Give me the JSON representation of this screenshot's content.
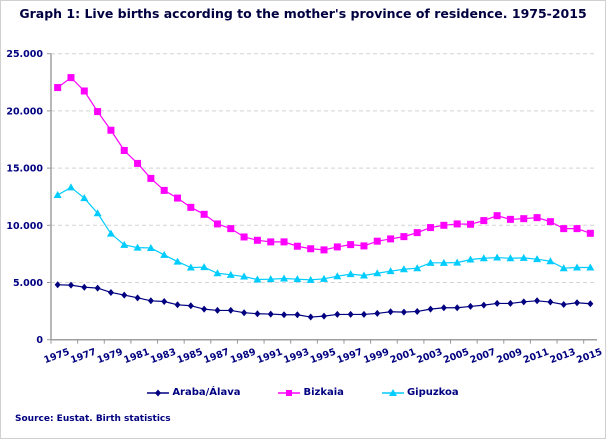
{
  "title": "Graph 1: Live births according to the mother's province of residence. 1975-2015",
  "source": "Source: Eustat. Birth statistics",
  "chart_data": {
    "type": "line",
    "title": "Graph 1: Live births according to the mother's province of residence. 1975-2015",
    "xlabel": "",
    "ylabel": "",
    "ylim": [
      0,
      25000
    ],
    "yticks": [
      "0",
      "5.000",
      "10.000",
      "15.000",
      "20.000",
      "25.000"
    ],
    "ytick_values": [
      0,
      5000,
      10000,
      15000,
      20000,
      25000
    ],
    "grid": "horizontal dashed",
    "legend": "bottom",
    "x": [
      1975,
      1976,
      1977,
      1978,
      1979,
      1980,
      1981,
      1982,
      1983,
      1984,
      1985,
      1986,
      1987,
      1988,
      1989,
      1990,
      1991,
      1992,
      1993,
      1994,
      1995,
      1996,
      1997,
      1998,
      1999,
      2000,
      2001,
      2002,
      2003,
      2004,
      2005,
      2006,
      2007,
      2008,
      2009,
      2010,
      2011,
      2012,
      2013,
      2014,
      2015
    ],
    "xtick_labels": [
      "1975",
      "1977",
      "1979",
      "1981",
      "1983",
      "1985",
      "1987",
      "1989",
      "1991",
      "1993",
      "1995",
      "1997",
      "1999",
      "2001",
      "2003",
      "2005",
      "2007",
      "2009",
      "2011",
      "2013",
      "2015"
    ],
    "series": [
      {
        "name": "Araba/Álava",
        "color": "#000080",
        "marker": "diamond",
        "values": [
          4800,
          4770,
          4590,
          4510,
          4130,
          3900,
          3660,
          3400,
          3340,
          3050,
          2970,
          2670,
          2560,
          2560,
          2360,
          2270,
          2240,
          2180,
          2180,
          1980,
          2060,
          2210,
          2210,
          2210,
          2300,
          2440,
          2410,
          2470,
          2670,
          2790,
          2790,
          2910,
          3020,
          3170,
          3170,
          3310,
          3400,
          3290,
          3080,
          3230,
          3140
        ]
      },
      {
        "name": "Bizkaia",
        "color": "#FF00FF",
        "marker": "square",
        "values": [
          22040,
          22910,
          21740,
          19940,
          18310,
          16540,
          15410,
          14100,
          13050,
          12380,
          11570,
          10960,
          10120,
          9710,
          8980,
          8690,
          8550,
          8550,
          8170,
          7950,
          7850,
          8110,
          8310,
          8200,
          8610,
          8810,
          9010,
          9360,
          9800,
          10000,
          10120,
          10090,
          10410,
          10840,
          10520,
          10580,
          10670,
          10320,
          9710,
          9710,
          9300
        ]
      },
      {
        "name": "Gipuzkoa",
        "color": "#00CCFF",
        "marker": "triangle",
        "values": [
          12650,
          13310,
          12380,
          11050,
          9270,
          8290,
          8050,
          8020,
          7410,
          6830,
          6310,
          6340,
          5810,
          5670,
          5520,
          5260,
          5290,
          5350,
          5290,
          5230,
          5320,
          5550,
          5730,
          5610,
          5810,
          5990,
          6160,
          6250,
          6720,
          6720,
          6740,
          7010,
          7120,
          7180,
          7120,
          7150,
          7040,
          6860,
          6250,
          6310,
          6310
        ]
      }
    ]
  }
}
